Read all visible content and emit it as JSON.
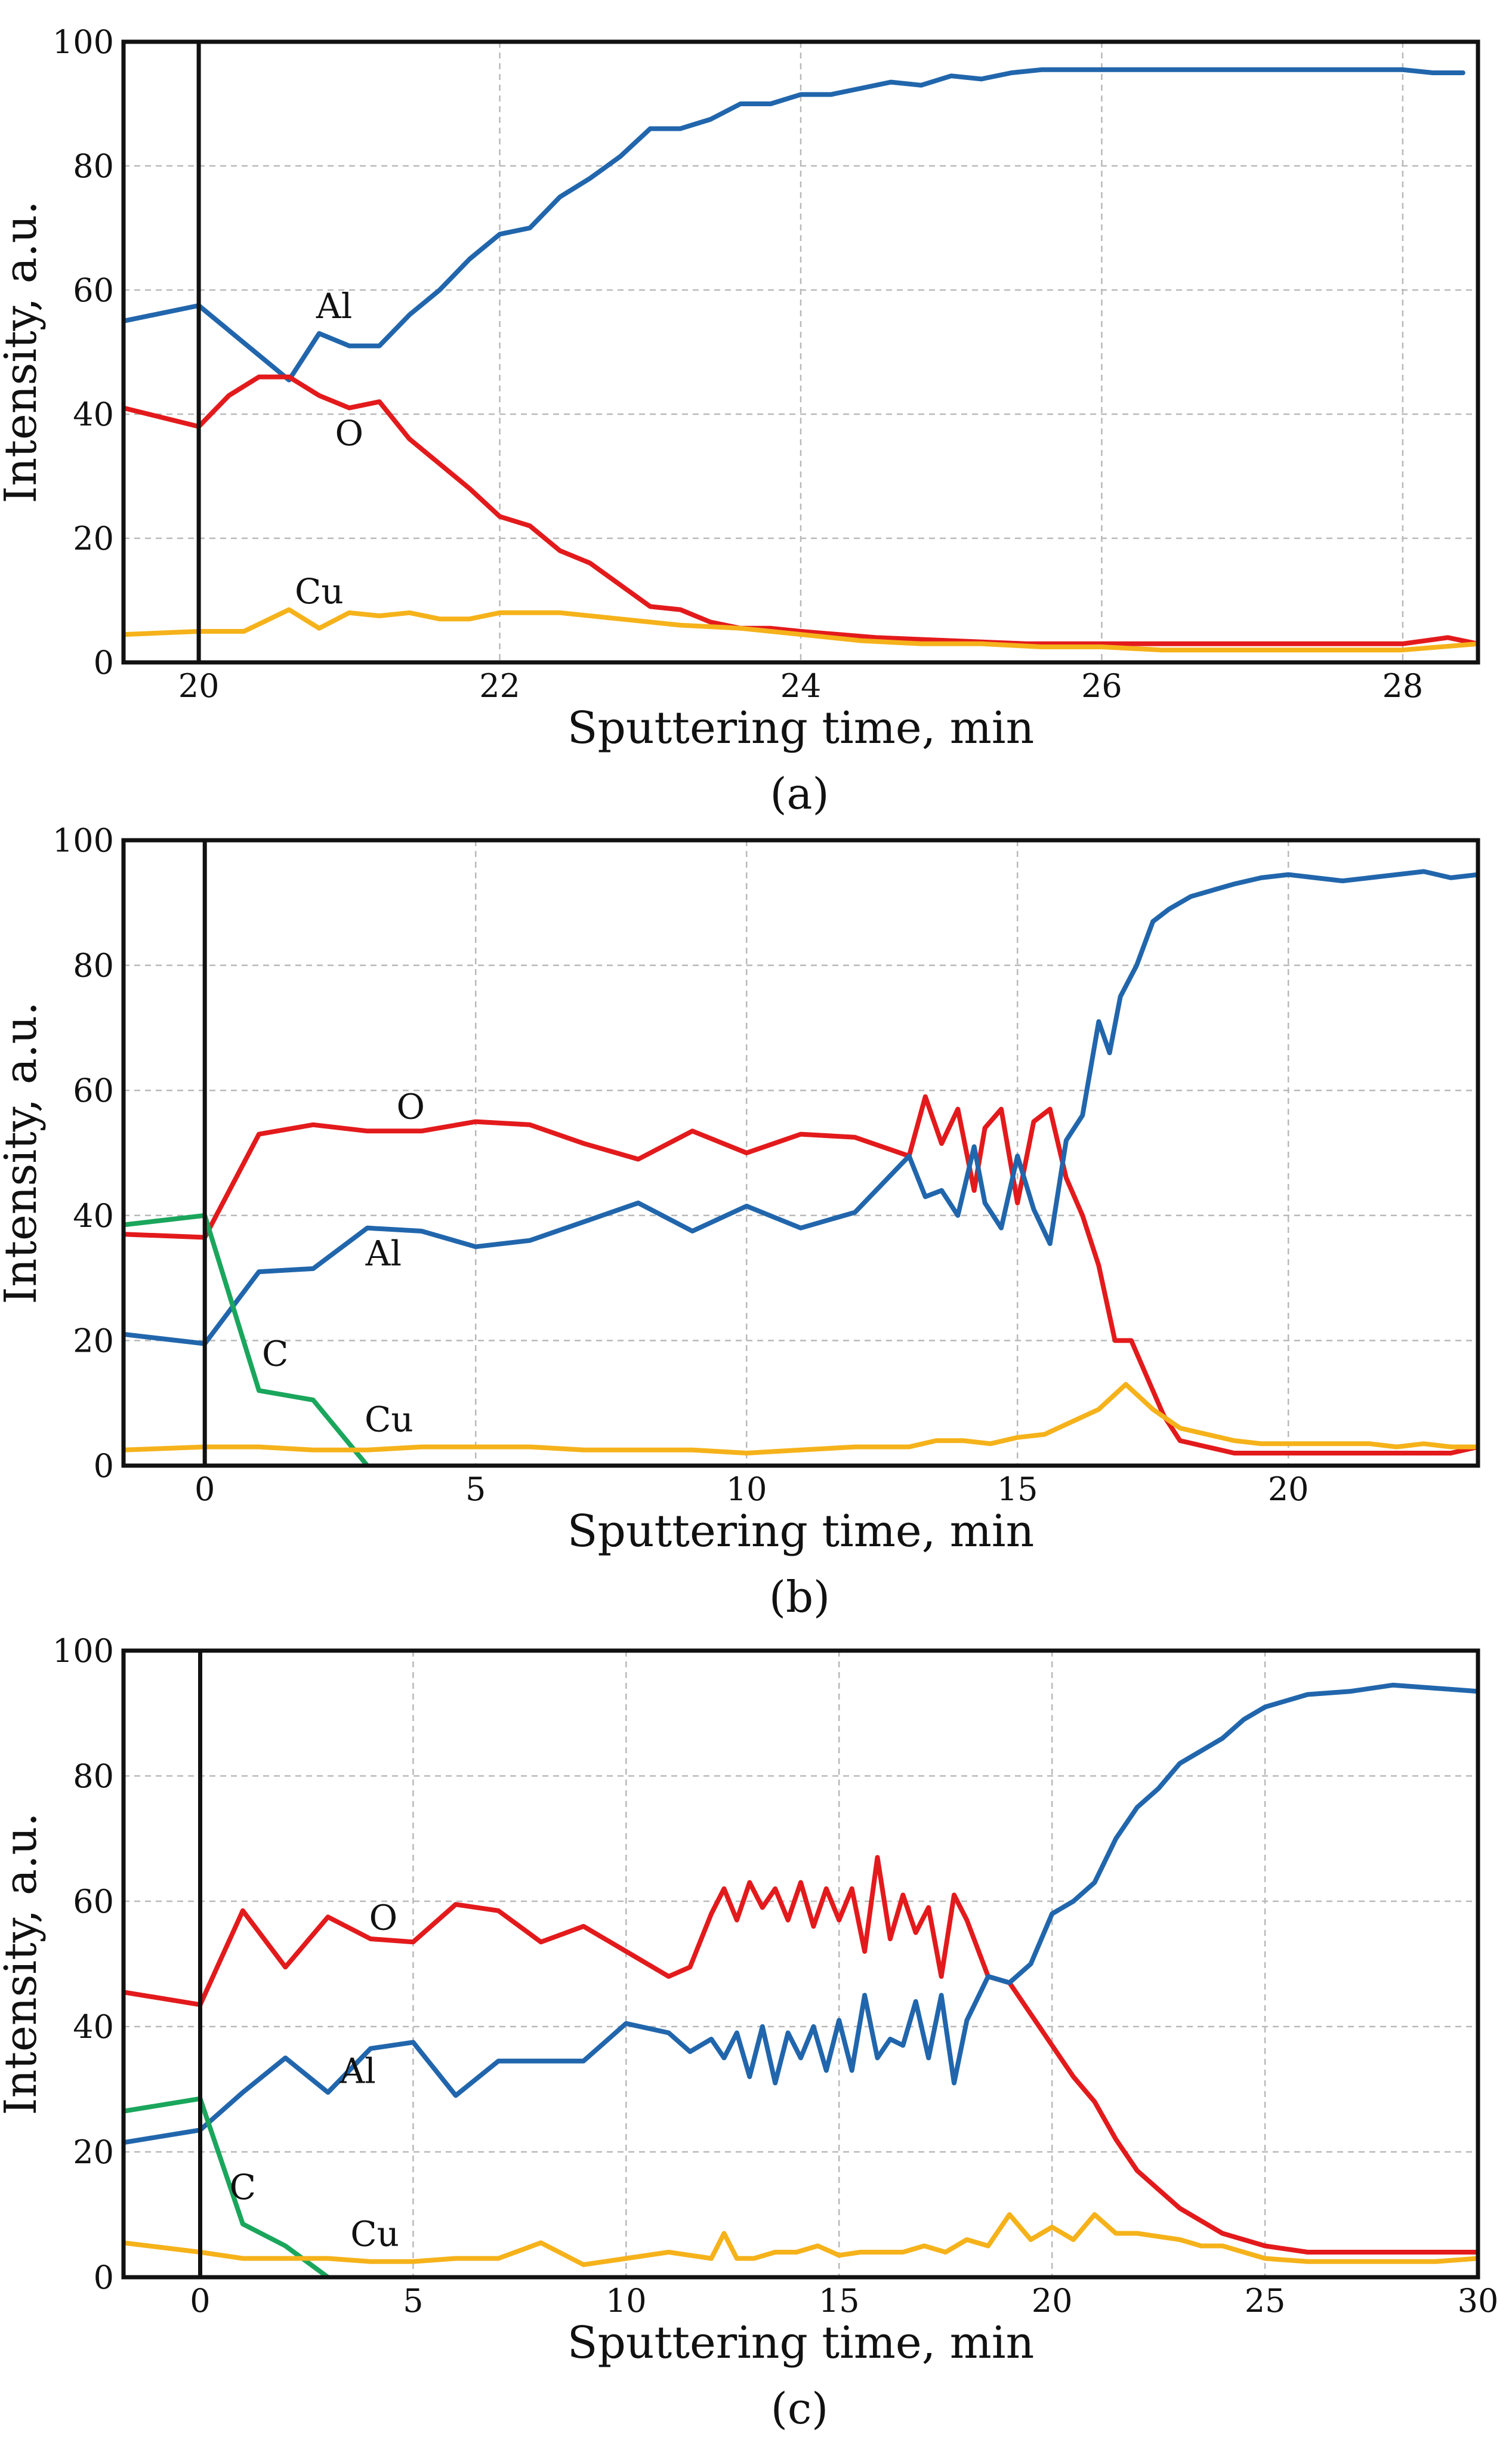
{
  "colors": {
    "Al": "#2166ac",
    "O": "#e31a1c",
    "Cu": "#f5b21a",
    "C": "#1aa65c"
  },
  "chart_data": [
    {
      "type": "line",
      "caption": "(a)",
      "xlabel": "Sputtering time, min",
      "ylabel": "Intensity, a.u.",
      "xlim": [
        19.5,
        28.5
      ],
      "ylim": [
        0,
        100
      ],
      "xticks": [
        20,
        22,
        24,
        26,
        28
      ],
      "yticks": [
        0,
        20,
        40,
        60,
        80,
        100
      ],
      "grid": true,
      "reference_line_x": 20,
      "series": [
        {
          "name": "Al",
          "label_at": [
            20.9,
            55.5
          ],
          "x": [
            19.5,
            20.0,
            20.6,
            20.8,
            21.0,
            21.2,
            21.4,
            21.6,
            21.8,
            22.0,
            22.2,
            22.4,
            22.6,
            22.8,
            23.0,
            23.2,
            23.4,
            23.6,
            23.8,
            24.0,
            24.2,
            24.4,
            24.6,
            24.8,
            25.0,
            25.2,
            25.4,
            25.6,
            25.8,
            26.0,
            26.2,
            26.4,
            26.6,
            26.8,
            27.0,
            27.2,
            27.4,
            27.6,
            27.8,
            28.0,
            28.2,
            28.4
          ],
          "y": [
            55,
            57.5,
            45.5,
            53,
            51,
            51,
            56,
            60,
            65,
            69,
            70,
            75,
            78,
            81.5,
            86,
            86,
            87.5,
            90,
            90,
            91.5,
            91.5,
            92.5,
            93.5,
            93,
            94.5,
            94,
            95,
            95.5,
            95.5,
            95.5,
            95.5,
            95.5,
            95.5,
            95.5,
            95.5,
            95.5,
            95.5,
            95.5,
            95.5,
            95.5,
            95,
            95
          ]
        },
        {
          "name": "O",
          "label_at": [
            21.0,
            35.0
          ],
          "x": [
            19.5,
            20.0,
            20.2,
            20.4,
            20.6,
            20.8,
            21.0,
            21.2,
            21.4,
            21.6,
            21.8,
            22.0,
            22.2,
            22.4,
            22.6,
            22.8,
            23.0,
            23.2,
            23.4,
            23.6,
            23.8,
            24.0,
            24.5,
            25.0,
            25.5,
            26.0,
            26.5,
            27.0,
            27.5,
            28.0,
            28.3,
            28.5
          ],
          "y": [
            41,
            38,
            43,
            46,
            46,
            43,
            41,
            42,
            36,
            32,
            28,
            23.5,
            22,
            18,
            16,
            12.5,
            9,
            8.5,
            6.5,
            5.5,
            5.5,
            5,
            4,
            3.5,
            3,
            3,
            3,
            3,
            3,
            3,
            4,
            3
          ]
        },
        {
          "name": "Cu",
          "label_at": [
            20.8,
            9.5
          ],
          "x": [
            19.5,
            20.0,
            20.3,
            20.6,
            20.8,
            21.0,
            21.2,
            21.4,
            21.6,
            21.8,
            22.0,
            22.4,
            22.8,
            23.2,
            23.6,
            24.0,
            24.4,
            24.8,
            25.2,
            25.6,
            26.0,
            26.4,
            26.8,
            27.2,
            27.6,
            28.0,
            28.5
          ],
          "y": [
            4.5,
            5,
            5,
            8.5,
            5.5,
            8,
            7.5,
            8,
            7,
            7,
            8,
            8,
            7,
            6,
            5.5,
            4.5,
            3.5,
            3,
            3,
            2.5,
            2.5,
            2,
            2,
            2,
            2,
            2,
            3
          ]
        }
      ]
    },
    {
      "type": "line",
      "caption": "(b)",
      "xlabel": "Sputtering time, min",
      "ylabel": "Intensity, a.u.",
      "xlim": [
        -1.5,
        23.5
      ],
      "ylim": [
        0,
        100
      ],
      "xticks": [
        0,
        5,
        10,
        15,
        20
      ],
      "yticks": [
        0,
        20,
        40,
        60,
        80,
        100
      ],
      "grid": true,
      "reference_line_x": 0,
      "series": [
        {
          "name": "O",
          "label_at": [
            3.8,
            55.5
          ],
          "x": [
            -1.5,
            0,
            1,
            2,
            3,
            4,
            5,
            6,
            7,
            8,
            9,
            10,
            11,
            12,
            13,
            13.3,
            13.6,
            13.9,
            14.2,
            14.4,
            14.7,
            15.0,
            15.3,
            15.6,
            15.9,
            16.2,
            16.5,
            16.8,
            17.1,
            17.4,
            17.7,
            18.0,
            18.5,
            19.0,
            19.5,
            20.0,
            20.5,
            21.0,
            21.5,
            22.0,
            22.5,
            23.0,
            23.5
          ],
          "y": [
            37,
            36.5,
            53,
            54.5,
            53.5,
            53.5,
            55,
            54.5,
            51.5,
            49,
            53.5,
            50,
            53,
            52.5,
            49.5,
            59,
            51.5,
            57,
            44,
            54,
            57,
            42,
            55,
            57,
            46,
            40,
            32,
            20,
            20,
            14,
            8,
            4,
            3,
            2,
            2,
            2,
            2,
            2,
            2,
            2,
            2,
            2,
            3
          ]
        },
        {
          "name": "Al",
          "label_at": [
            3.3,
            32.0
          ],
          "x": [
            -1.5,
            0,
            1,
            2,
            3,
            4,
            5,
            6,
            7,
            8,
            9,
            10,
            11,
            12,
            13,
            13.3,
            13.6,
            13.9,
            14.2,
            14.4,
            14.7,
            15.0,
            15.3,
            15.6,
            15.9,
            16.2,
            16.5,
            16.7,
            16.9,
            17.2,
            17.5,
            17.8,
            18.2,
            18.6,
            19.0,
            19.5,
            20.0,
            20.5,
            21.0,
            21.5,
            22.0,
            22.5,
            23.0,
            23.5
          ],
          "y": [
            21,
            19.5,
            31,
            31.5,
            38,
            37.5,
            35,
            36,
            39,
            42,
            37.5,
            41.5,
            38,
            40.5,
            49.5,
            43,
            44,
            40,
            51,
            42,
            38,
            49.5,
            41,
            35.5,
            52,
            56,
            71,
            66,
            75,
            80,
            87,
            89,
            91,
            92,
            93,
            94,
            94.5,
            94,
            93.5,
            94,
            94.5,
            95,
            94,
            94.5
          ]
        },
        {
          "name": "C",
          "label_at": [
            1.3,
            16.0
          ],
          "x": [
            -1.5,
            0,
            1,
            2,
            3
          ],
          "y": [
            38.5,
            40,
            12,
            10.5,
            0
          ]
        },
        {
          "name": "Cu",
          "label_at": [
            3.4,
            5.5
          ],
          "x": [
            -1.5,
            0,
            1,
            2,
            3,
            4,
            5,
            6,
            7,
            8,
            9,
            10,
            11,
            12,
            13,
            13.5,
            14,
            14.5,
            15,
            15.5,
            16,
            16.5,
            17,
            17.5,
            18,
            18.5,
            19,
            19.5,
            20,
            20.5,
            21,
            21.5,
            22,
            22.5,
            23,
            23.5
          ],
          "y": [
            2.5,
            3,
            3,
            2.5,
            2.5,
            3,
            3,
            3,
            2.5,
            2.5,
            2.5,
            2,
            2.5,
            3,
            3,
            4,
            4,
            3.5,
            4.5,
            5,
            7,
            9,
            13,
            9,
            6,
            5,
            4,
            3.5,
            3.5,
            3.5,
            3.5,
            3.5,
            3,
            3.5,
            3,
            3
          ]
        }
      ]
    },
    {
      "type": "line",
      "caption": "(c)",
      "xlabel": "Sputtering time, min",
      "ylabel": "Intensity, a.u.",
      "xlim": [
        -1.8,
        30
      ],
      "ylim": [
        0,
        100
      ],
      "xticks": [
        0,
        5,
        10,
        15,
        20,
        25,
        30
      ],
      "yticks": [
        0,
        20,
        40,
        60,
        80,
        100
      ],
      "grid": true,
      "reference_line_x": 0,
      "series": [
        {
          "name": "O",
          "label_at": [
            4.3,
            55.5
          ],
          "x": [
            -1.8,
            0,
            1,
            2,
            3,
            4,
            5,
            6,
            7,
            8,
            9,
            10,
            11,
            11.5,
            12,
            12.3,
            12.6,
            12.9,
            13.2,
            13.5,
            13.8,
            14.1,
            14.4,
            14.7,
            15.0,
            15.3,
            15.6,
            15.9,
            16.2,
            16.5,
            16.8,
            17.1,
            17.4,
            17.7,
            18.0,
            18.5,
            19.0,
            19.5,
            20.0,
            20.5,
            21.0,
            21.5,
            22.0,
            22.5,
            23.0,
            24.0,
            25.0,
            26.0,
            27.0,
            28.0,
            29.0,
            30.0
          ],
          "y": [
            45.5,
            43.5,
            58.5,
            49.5,
            57.5,
            54,
            53.5,
            59.5,
            58.5,
            53.5,
            56,
            52,
            48,
            49.5,
            58,
            62,
            57,
            63,
            59,
            62,
            57,
            63,
            56,
            62,
            57,
            62,
            52,
            67,
            54,
            61,
            55,
            59,
            48,
            61,
            57,
            48,
            47,
            42,
            37,
            32,
            28,
            22,
            17,
            14,
            11,
            7,
            5,
            4,
            4,
            4,
            4,
            4
          ]
        },
        {
          "name": "Al",
          "label_at": [
            3.7,
            31.0
          ],
          "x": [
            -1.8,
            0,
            1,
            2,
            3,
            4,
            5,
            6,
            7,
            8,
            9,
            10,
            11,
            11.5,
            12,
            12.3,
            12.6,
            12.9,
            13.2,
            13.5,
            13.8,
            14.1,
            14.4,
            14.7,
            15.0,
            15.3,
            15.6,
            15.9,
            16.2,
            16.5,
            16.8,
            17.1,
            17.4,
            17.7,
            18.0,
            18.5,
            19.0,
            19.5,
            20.0,
            20.5,
            21.0,
            21.5,
            22.0,
            22.5,
            23.0,
            23.5,
            24.0,
            24.5,
            25.0,
            26.0,
            27.0,
            28.0,
            29.0,
            30.0
          ],
          "y": [
            21.5,
            23.5,
            29.5,
            35,
            29.5,
            36.5,
            37.5,
            29,
            34.5,
            34.5,
            34.5,
            40.5,
            39,
            36,
            38,
            35,
            39,
            32,
            40,
            31,
            39,
            35,
            40,
            33,
            41,
            33,
            45,
            35,
            38,
            37,
            44,
            35,
            45,
            31,
            41,
            48,
            47,
            50,
            58,
            60,
            63,
            70,
            75,
            78,
            82,
            84,
            86,
            89,
            91,
            93,
            93.5,
            94.5,
            94,
            93.5
          ]
        },
        {
          "name": "C",
          "label_at": [
            1.0,
            12.5
          ],
          "x": [
            -1.8,
            0,
            1,
            2,
            3
          ],
          "y": [
            26.5,
            28.5,
            8.5,
            5,
            0
          ]
        },
        {
          "name": "Cu",
          "label_at": [
            4.1,
            5.0
          ],
          "x": [
            -1.8,
            0,
            1,
            2,
            3,
            4,
            5,
            6,
            7,
            8,
            9,
            10,
            11,
            12,
            12.3,
            12.6,
            13,
            13.5,
            14,
            14.5,
            15,
            15.5,
            16,
            16.5,
            17,
            17.5,
            18,
            18.5,
            19,
            19.5,
            20,
            20.5,
            21,
            21.5,
            22,
            22.5,
            23,
            23.5,
            24,
            25,
            26,
            27,
            28,
            29,
            30
          ],
          "y": [
            5.5,
            4,
            3,
            3,
            3,
            2.5,
            2.5,
            3,
            3,
            5.5,
            2,
            3,
            4,
            3,
            7,
            3,
            3,
            4,
            4,
            5,
            3.5,
            4,
            4,
            4,
            5,
            4,
            6,
            5,
            10,
            6,
            8,
            6,
            10,
            7,
            7,
            6.5,
            6,
            5,
            5,
            3,
            2.5,
            2.5,
            2.5,
            2.5,
            3
          ]
        }
      ]
    }
  ]
}
